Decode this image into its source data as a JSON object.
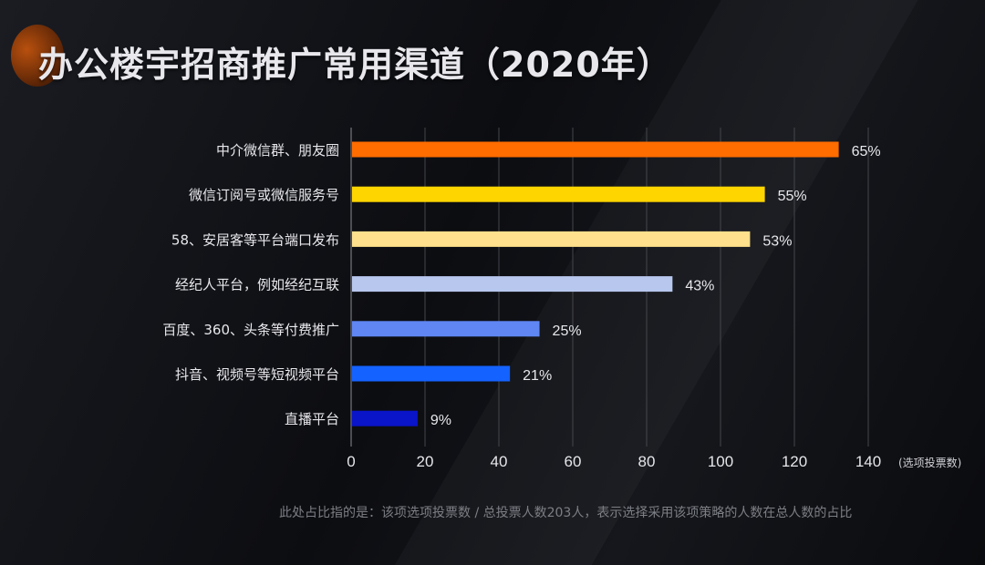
{
  "title": "办公楼宇招商推广常用渠道（2020年）",
  "footnote": "此处占比指的是：该项选项投票数 / 总投票人数203人，表示选择采用该项策略的人数在总人数的占比",
  "chart_data": {
    "type": "bar",
    "orientation": "horizontal",
    "title": "办公楼宇招商推广常用渠道（2020年）",
    "xlabel": "(选项投票数)",
    "xlim": [
      0,
      140
    ],
    "xticks": [
      0,
      20,
      40,
      60,
      80,
      100,
      120,
      140
    ],
    "grid": "vertical",
    "categories": [
      "中介微信群、朋友圈",
      "微信订阅号或微信服务号",
      "58、安居客等平台端口发布",
      "经纪人平台，例如经纪互联",
      "百度、360、头条等付费推广",
      "抖音、视频号等短视频平台",
      "直播平台"
    ],
    "values": [
      132,
      112,
      108,
      87,
      51,
      43,
      18
    ],
    "data_labels": [
      "65%",
      "55%",
      "53%",
      "43%",
      "25%",
      "21%",
      "9%"
    ],
    "colors": [
      "#ff6c00",
      "#ffd500",
      "#ffe08c",
      "#b8c7ee",
      "#5f86f3",
      "#1462ff",
      "#0a14c8"
    ]
  }
}
